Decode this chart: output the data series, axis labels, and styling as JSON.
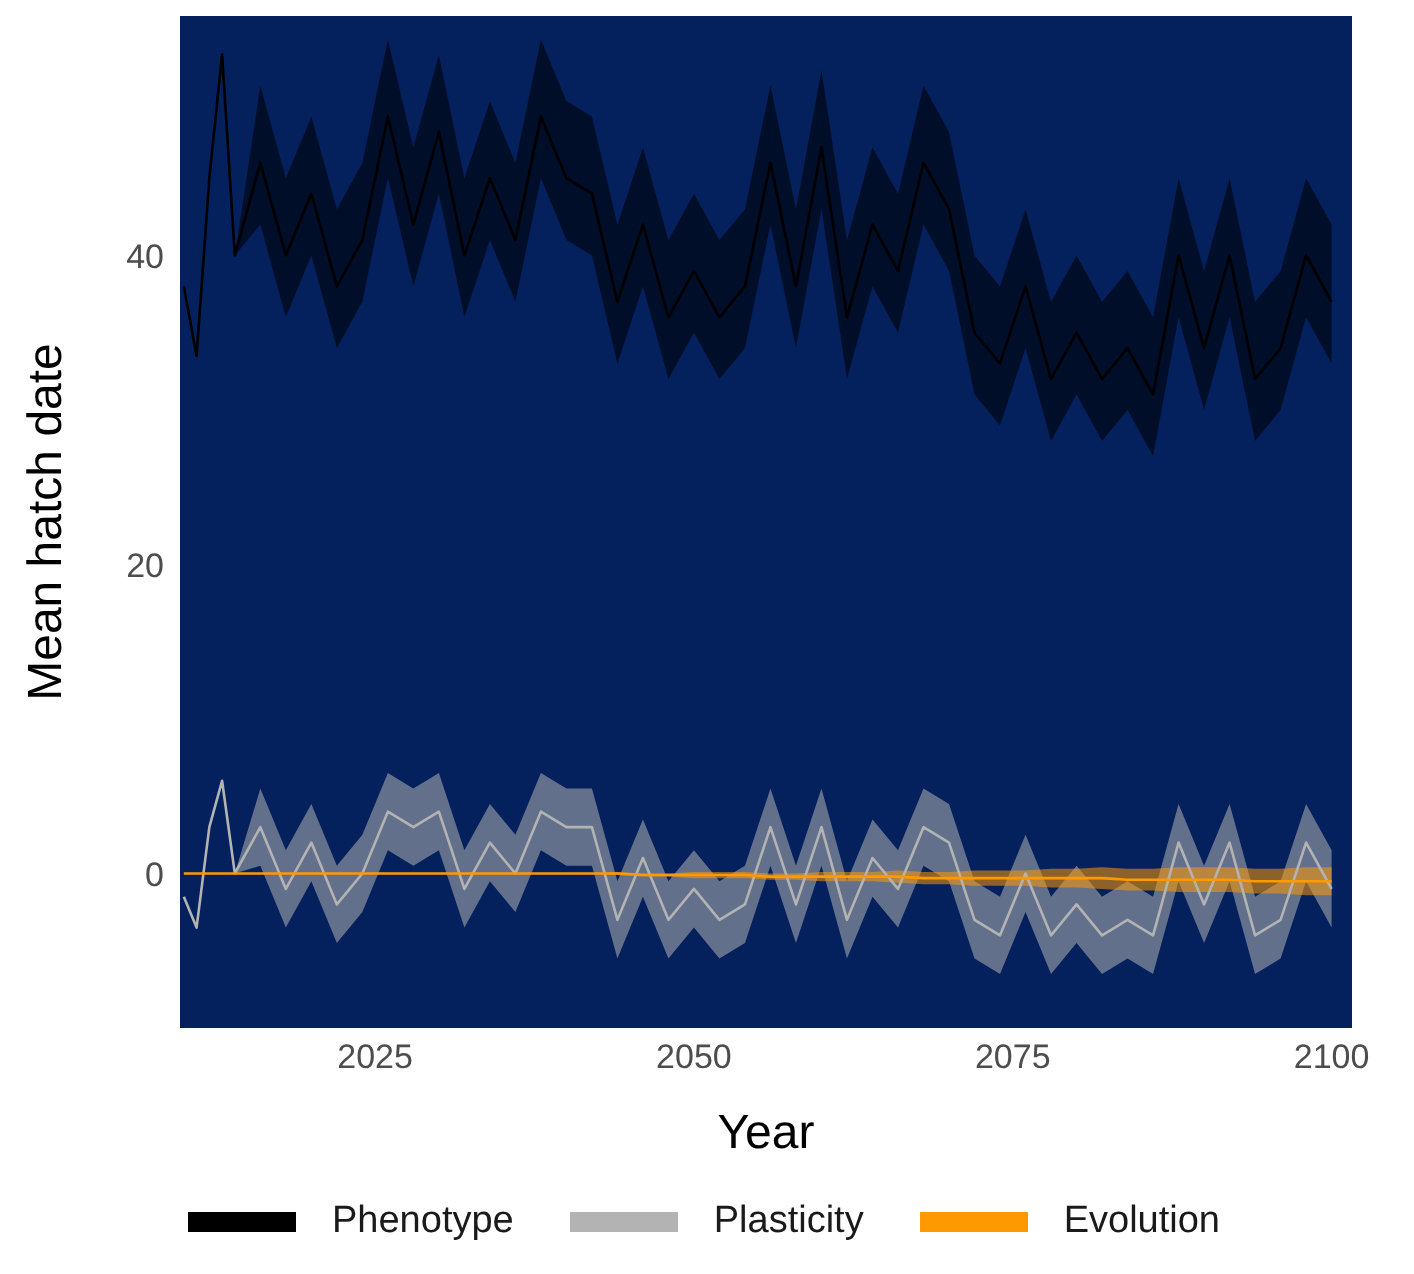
{
  "chart_data": {
    "type": "line",
    "xlabel": "Year",
    "ylabel": "Mean hatch date",
    "xlim": [
      2009.7,
      2101.6
    ],
    "ylim": [
      -10,
      55.5
    ],
    "xticks": [
      2025,
      2050,
      2075,
      2100
    ],
    "yticks": [
      0,
      20,
      40
    ],
    "grid": false,
    "legend": "bottom",
    "marker": "none",
    "line_style": "solid",
    "x": [
      2010,
      2011,
      2012,
      2013,
      2014,
      2016,
      2018,
      2020,
      2022,
      2024,
      2026,
      2028,
      2030,
      2032,
      2034,
      2036,
      2038,
      2040,
      2042,
      2044,
      2046,
      2048,
      2050,
      2052,
      2054,
      2056,
      2058,
      2060,
      2062,
      2064,
      2066,
      2068,
      2070,
      2072,
      2074,
      2076,
      2078,
      2080,
      2082,
      2084,
      2086,
      2088,
      2090,
      2092,
      2094,
      2096,
      2098,
      2100
    ],
    "series": [
      {
        "name": "Phenotype",
        "color": "#000000",
        "values": [
          38,
          33.5,
          45,
          53,
          40,
          46,
          40,
          44,
          38,
          41,
          49,
          42,
          48,
          40,
          45,
          41,
          49,
          45,
          44,
          37,
          42,
          36,
          39,
          36,
          38,
          46,
          38,
          47,
          36,
          42,
          39,
          46,
          43,
          35,
          33,
          38,
          32,
          35,
          32,
          34,
          31,
          40,
          34,
          40,
          32,
          34,
          40,
          37
        ],
        "lower": [
          38,
          33.5,
          45,
          53,
          40,
          42,
          36,
          40,
          34,
          37,
          45,
          38,
          44,
          36,
          41,
          37,
          45,
          41,
          40,
          33,
          38,
          32,
          35,
          32,
          34,
          42,
          34,
          43,
          32,
          38,
          35,
          42,
          39,
          31,
          29,
          34,
          28,
          31,
          28,
          30,
          27,
          36,
          30,
          36,
          28,
          30,
          36,
          33
        ],
        "upper": [
          38,
          33.5,
          45,
          53,
          40,
          51,
          45,
          49,
          43,
          46,
          54,
          47,
          53,
          45,
          50,
          46,
          54,
          50,
          49,
          42,
          47,
          41,
          44,
          41,
          43,
          51,
          43,
          52,
          41,
          47,
          44,
          51,
          48,
          40,
          38,
          43,
          37,
          40,
          37,
          39,
          36,
          45,
          39,
          45,
          37,
          39,
          45,
          42
        ]
      },
      {
        "name": "Plasticity",
        "color": "#b3b3b3",
        "values": [
          -1.5,
          -3.5,
          3,
          6,
          0,
          3,
          -1,
          2,
          -2,
          0,
          4,
          3,
          4,
          -1,
          2,
          0,
          4,
          3,
          3,
          -3,
          1,
          -3,
          -1,
          -3,
          -2,
          3,
          -2,
          3,
          -3,
          1,
          -1,
          3,
          2,
          -3,
          -4,
          0,
          -4,
          -2,
          -4,
          -3,
          -4,
          2,
          -2,
          2,
          -4,
          -3,
          2,
          -1
        ],
        "lower": [
          -1.5,
          -3.5,
          3,
          6,
          0,
          0.5,
          -3.5,
          -0.5,
          -4.5,
          -2.5,
          1.5,
          0.5,
          1.5,
          -3.5,
          -0.5,
          -2.5,
          1.5,
          0.5,
          0.5,
          -5.5,
          -1.5,
          -5.5,
          -3.5,
          -5.5,
          -4.5,
          0.5,
          -4.5,
          0.5,
          -5.5,
          -1.5,
          -3.5,
          0.5,
          -0.5,
          -5.5,
          -6.5,
          -2.5,
          -6.5,
          -4.5,
          -6.5,
          -5.5,
          -6.5,
          -0.5,
          -4.5,
          -0.5,
          -6.5,
          -5.5,
          -0.5,
          -3.5
        ],
        "upper": [
          -1.5,
          -3.5,
          3,
          6,
          0,
          5.5,
          1.5,
          4.5,
          0.5,
          2.5,
          6.5,
          5.5,
          6.5,
          1.5,
          4.5,
          2.5,
          6.5,
          5.5,
          5.5,
          -0.5,
          3.5,
          -0.5,
          1.5,
          -0.5,
          0.5,
          5.5,
          0.5,
          5.5,
          -0.5,
          3.5,
          1.5,
          5.5,
          4.5,
          -0.5,
          -1.5,
          2.5,
          -1.5,
          0.5,
          -1.5,
          -0.5,
          -1.5,
          4.5,
          0.5,
          4.5,
          -1.5,
          -0.5,
          4.5,
          1.5
        ]
      },
      {
        "name": "Evolution",
        "color": "#ff9900",
        "values": [
          0,
          0,
          0,
          0,
          0,
          0,
          0,
          0,
          0,
          0,
          0,
          0,
          0,
          0,
          0,
          0,
          0,
          0,
          0,
          0,
          -0.1,
          -0.1,
          -0.1,
          -0.1,
          -0.1,
          -0.2,
          -0.2,
          -0.2,
          -0.2,
          -0.2,
          -0.2,
          -0.3,
          -0.3,
          -0.3,
          -0.3,
          -0.3,
          -0.3,
          -0.3,
          -0.3,
          -0.4,
          -0.4,
          -0.4,
          -0.4,
          -0.4,
          -0.5,
          -0.5,
          -0.5,
          -0.5
        ],
        "lower": [
          0,
          0,
          0,
          0,
          0,
          0,
          0,
          0,
          0,
          0,
          0,
          0,
          0,
          0,
          0,
          0,
          0,
          0,
          0,
          -0.1,
          -0.2,
          -0.2,
          -0.3,
          -0.3,
          -0.3,
          -0.4,
          -0.4,
          -0.5,
          -0.5,
          -0.5,
          -0.6,
          -0.7,
          -0.7,
          -0.8,
          -0.8,
          -0.8,
          -0.9,
          -0.9,
          -1,
          -1.1,
          -1.1,
          -1.2,
          -1.2,
          -1.2,
          -1.3,
          -1.3,
          -1.4,
          -1.4
        ],
        "upper": [
          0,
          0,
          0,
          0,
          0,
          0,
          0,
          0,
          0,
          0,
          0,
          0,
          0,
          0,
          0,
          0,
          0,
          0,
          0,
          0.1,
          0,
          0,
          0.1,
          0.1,
          0.1,
          0,
          0,
          0.1,
          0.1,
          0.1,
          0.2,
          0.1,
          0.1,
          0.2,
          0.2,
          0.2,
          0.3,
          0.3,
          0.4,
          0.3,
          0.3,
          0.4,
          0.4,
          0.4,
          0.3,
          0.3,
          0.4,
          0.4
        ]
      }
    ]
  }
}
